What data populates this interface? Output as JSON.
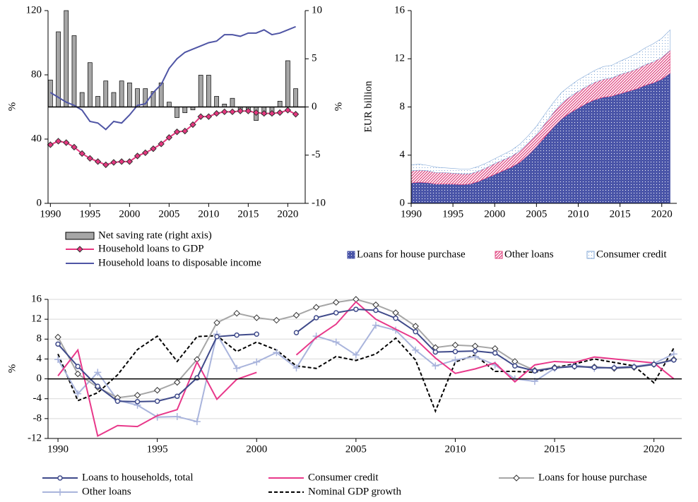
{
  "chart_data": [
    {
      "type": "combo",
      "x": [
        1990,
        1991,
        1992,
        1993,
        1994,
        1995,
        1996,
        1997,
        1998,
        1999,
        2000,
        2001,
        2002,
        2003,
        2004,
        2005,
        2006,
        2007,
        2008,
        2009,
        2010,
        2011,
        2012,
        2013,
        2014,
        2015,
        2016,
        2017,
        2018,
        2019,
        2020,
        2021
      ],
      "xlim": [
        1989.7,
        2022.2
      ],
      "xticks": [
        1990,
        1995,
        2000,
        2005,
        2010,
        2015,
        2020
      ],
      "ylim": [
        0,
        120
      ],
      "yticks": [
        0,
        40,
        80,
        120
      ],
      "y2lim": [
        -10,
        10
      ],
      "y2ticks": [
        -10,
        -5,
        0,
        5,
        10
      ],
      "ylabel": "%",
      "y2label": "%",
      "legend": "bottom-left",
      "series": [
        {
          "name": "Net saving rate (right axis)",
          "type": "bar",
          "axis": "y2",
          "color": "#a6a6a6",
          "values": [
            2.8,
            7.8,
            10,
            7.4,
            1.5,
            4.6,
            1.1,
            2.7,
            1.5,
            2.7,
            2.5,
            1.9,
            1.9,
            1.6,
            2.5,
            0.5,
            -1.1,
            -0.6,
            -0.3,
            3.3,
            3.3,
            1.1,
            0.3,
            0.9,
            -0.3,
            -0.3,
            -1.4,
            -0.8,
            -0.8,
            0.6,
            4.8,
            1.9
          ]
        },
        {
          "name": "Household loans to GDP",
          "type": "line",
          "marker": "diamond",
          "marker_fill": "#e6367f",
          "color": "#e6367f",
          "values": [
            36.5,
            38.7,
            37.8,
            35,
            31,
            28,
            26,
            24,
            25.5,
            26,
            26,
            29.5,
            31.5,
            34,
            37,
            41,
            44.5,
            45,
            49,
            54,
            54,
            56,
            57,
            57,
            57.5,
            57.5,
            56.5,
            56,
            56,
            56.5,
            58,
            55.5
          ]
        },
        {
          "name": "Household loans to disposable income",
          "type": "line",
          "color": "#4f55a5",
          "values": [
            69,
            66,
            63,
            61,
            58,
            51,
            50,
            46,
            51,
            50,
            55,
            61,
            62,
            69,
            74,
            84,
            90,
            94,
            96,
            98,
            100,
            101,
            105,
            105,
            104,
            106,
            106,
            108,
            105,
            106,
            108,
            110
          ]
        }
      ]
    },
    {
      "type": "area",
      "stacked": true,
      "x": [
        1990,
        1991,
        1992,
        1993,
        1994,
        1995,
        1996,
        1997,
        1998,
        1999,
        2000,
        2001,
        2002,
        2003,
        2004,
        2005,
        2006,
        2007,
        2008,
        2009,
        2010,
        2011,
        2012,
        2013,
        2014,
        2015,
        2016,
        2017,
        2018,
        2019,
        2020,
        2021
      ],
      "xlim": [
        1990,
        2021.8
      ],
      "xticks": [
        1990,
        1995,
        2000,
        2005,
        2010,
        2015,
        2020
      ],
      "ylim": [
        0,
        16
      ],
      "yticks": [
        0,
        4,
        8,
        12,
        16
      ],
      "ylabel": "EUR billion",
      "legend": "bottom",
      "series": [
        {
          "name": "Loans for house purchase",
          "color": "#4a55a8",
          "pattern": "shaded",
          "values": [
            1.7,
            1.75,
            1.7,
            1.6,
            1.6,
            1.6,
            1.55,
            1.6,
            1.8,
            2.1,
            2.4,
            2.7,
            3.0,
            3.4,
            4.0,
            4.7,
            5.5,
            6.3,
            7.0,
            7.5,
            7.9,
            8.3,
            8.6,
            8.8,
            8.9,
            9.1,
            9.3,
            9.5,
            9.8,
            10.0,
            10.3,
            10.8
          ]
        },
        {
          "name": "Other loans",
          "color": "#e0457f",
          "pattern": "hatch",
          "values": [
            1.0,
            1.0,
            1.0,
            0.95,
            0.95,
            0.9,
            0.9,
            0.85,
            0.85,
            0.85,
            0.9,
            0.9,
            0.9,
            0.95,
            1.0,
            1.0,
            1.1,
            1.2,
            1.3,
            1.35,
            1.4,
            1.4,
            1.45,
            1.5,
            1.5,
            1.6,
            1.6,
            1.65,
            1.7,
            1.75,
            1.8,
            1.9
          ]
        },
        {
          "name": "Consumer credit",
          "color": "#7fa6d6",
          "pattern": "dotted",
          "values": [
            0.5,
            0.5,
            0.45,
            0.45,
            0.4,
            0.4,
            0.4,
            0.4,
            0.4,
            0.4,
            0.4,
            0.45,
            0.5,
            0.55,
            0.6,
            0.7,
            0.8,
            0.85,
            0.9,
            0.9,
            0.95,
            0.95,
            1.0,
            1.05,
            1.05,
            1.1,
            1.2,
            1.3,
            1.4,
            1.5,
            1.6,
            1.7
          ]
        }
      ]
    },
    {
      "type": "line",
      "x": [
        1990,
        1991,
        1992,
        1993,
        1994,
        1995,
        1996,
        1997,
        1998,
        1999,
        2000,
        2001,
        2002,
        2003,
        2004,
        2005,
        2006,
        2007,
        2008,
        2009,
        2010,
        2011,
        2012,
        2013,
        2014,
        2015,
        2016,
        2017,
        2018,
        2019,
        2020,
        2021
      ],
      "xlim": [
        1989.5,
        2021.4
      ],
      "xticks": [
        1990,
        1995,
        2000,
        2005,
        2010,
        2015,
        2020
      ],
      "ylim": [
        -12,
        16
      ],
      "yticks": [
        -12,
        -8,
        -4,
        0,
        4,
        8,
        12,
        16
      ],
      "ylabel": "%",
      "grid": true,
      "zero_line": true,
      "legend": "bottom",
      "series": [
        {
          "name": "Loans to households, total",
          "color": "#3f4a8a",
          "marker": "circle",
          "marker_fill": "#ffffff",
          "values": [
            7,
            2.5,
            -1.5,
            -4.5,
            -4.6,
            -4.5,
            -3.5,
            0.2,
            8.5,
            8.8,
            9,
            null,
            9.3,
            12.3,
            13.3,
            14,
            13.8,
            12.2,
            9.5,
            5.4,
            5.5,
            5.6,
            5.2,
            2.6,
            1.6,
            2.2,
            2.5,
            2.3,
            2.2,
            2.4,
            2.9,
            3.8
          ]
        },
        {
          "name": "Consumer credit",
          "color": "#e8388a",
          "values": [
            0.6,
            5.8,
            -11.5,
            -9.4,
            -9.6,
            -7.4,
            -6.2,
            3.4,
            -4.1,
            -0.1,
            1.3,
            null,
            4.8,
            8.3,
            11,
            15.5,
            12,
            10,
            8,
            4.2,
            1.1,
            2,
            3.2,
            -0.6,
            2.8,
            3.5,
            3.3,
            4.4,
            4,
            3.6,
            3.2,
            0
          ]
        },
        {
          "name": "Loans for house purchase",
          "color": "#a6a6a6",
          "marker": "diamond",
          "marker_fill": "#ffffff",
          "values": [
            8.4,
            1,
            -1.7,
            -3.8,
            -3.3,
            -2.3,
            -0.7,
            3.9,
            11.3,
            13.2,
            12.3,
            11.8,
            12.8,
            14.4,
            15.4,
            16,
            14.9,
            13.3,
            10.6,
            6.3,
            6.8,
            6.6,
            6.1,
            3.5,
            1.7,
            2.3,
            2.5,
            2.4,
            2.1,
            2.3,
            2.9,
            3.9
          ]
        },
        {
          "name": "Other loans",
          "color": "#a9b4dc",
          "marker": "plus",
          "values": [
            3.9,
            -3,
            1.3,
            -4.3,
            -5.3,
            -7.7,
            -7.6,
            -8.6,
            9,
            2.1,
            3.4,
            5.3,
            2.2,
            8.6,
            7.4,
            4.8,
            10.8,
            9.8,
            5.8,
            2.6,
            3.8,
            4.5,
            2.8,
            0,
            -0.5,
            2.1,
            2.8,
            2.1,
            2.3,
            2.5,
            3.1,
            5
          ]
        },
        {
          "name": "Nominal GDP growth",
          "color": "#000000",
          "dash": true,
          "values": [
            5,
            -4.4,
            -2.8,
            0.8,
            5.9,
            8.6,
            3.5,
            8.5,
            8.7,
            5.5,
            7.4,
            5.8,
            2.6,
            2.1,
            4.5,
            3.7,
            5,
            8.2,
            3.8,
            -6.5,
            3.4,
            4.8,
            1.5,
            1.5,
            1.3,
            2.3,
            3,
            4,
            3.3,
            2.6,
            -0.8,
            6.2
          ]
        }
      ]
    }
  ]
}
